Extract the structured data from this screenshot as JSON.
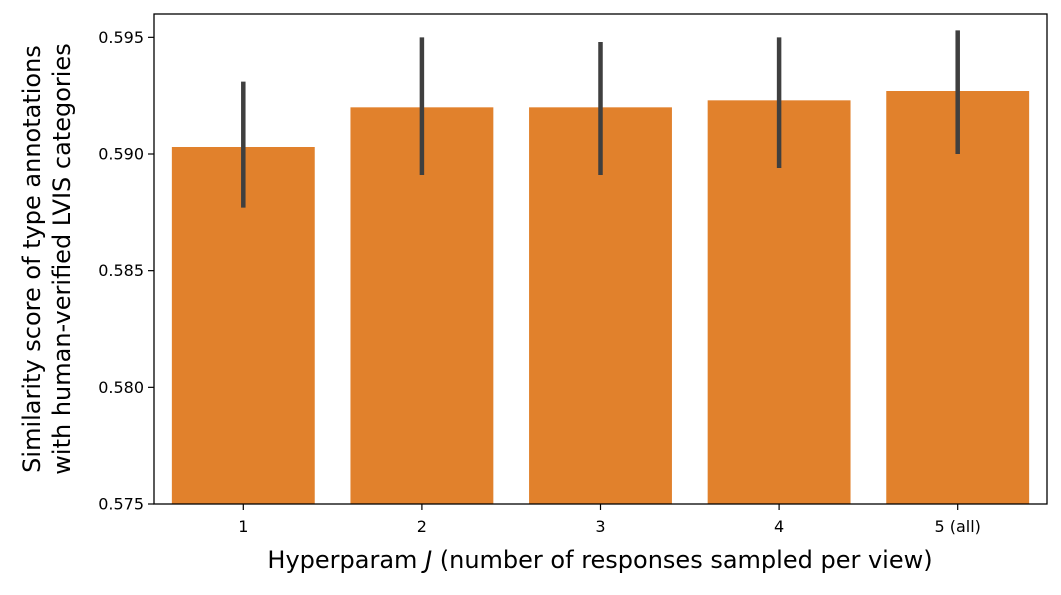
{
  "chart_data": {
    "type": "bar",
    "title": "",
    "xlabel": {
      "prefix": "Hyperparam ",
      "symbol": "J",
      "suffix": " (number of responses sampled per view)"
    },
    "ylabel": [
      "Similarity score of type annotations",
      "with human-verified LVIS categories"
    ],
    "categories": [
      "1",
      "2",
      "3",
      "4",
      "5  (all)"
    ],
    "values": [
      0.5903,
      0.592,
      0.592,
      0.5923,
      0.5927
    ],
    "error_low": [
      0.5877,
      0.5891,
      0.5891,
      0.5894,
      0.59
    ],
    "error_high": [
      0.5931,
      0.595,
      0.5948,
      0.595,
      0.5953
    ],
    "ylim": [
      0.575,
      0.596
    ],
    "yticks": [
      0.575,
      0.58,
      0.585,
      0.59,
      0.595
    ],
    "ytick_labels": [
      "0.575",
      "0.580",
      "0.585",
      "0.590",
      "0.595"
    ],
    "grid": false,
    "colors": {
      "bar": "#e1812c",
      "errorbar": "#3f3f3f",
      "axis": "#000000"
    }
  }
}
